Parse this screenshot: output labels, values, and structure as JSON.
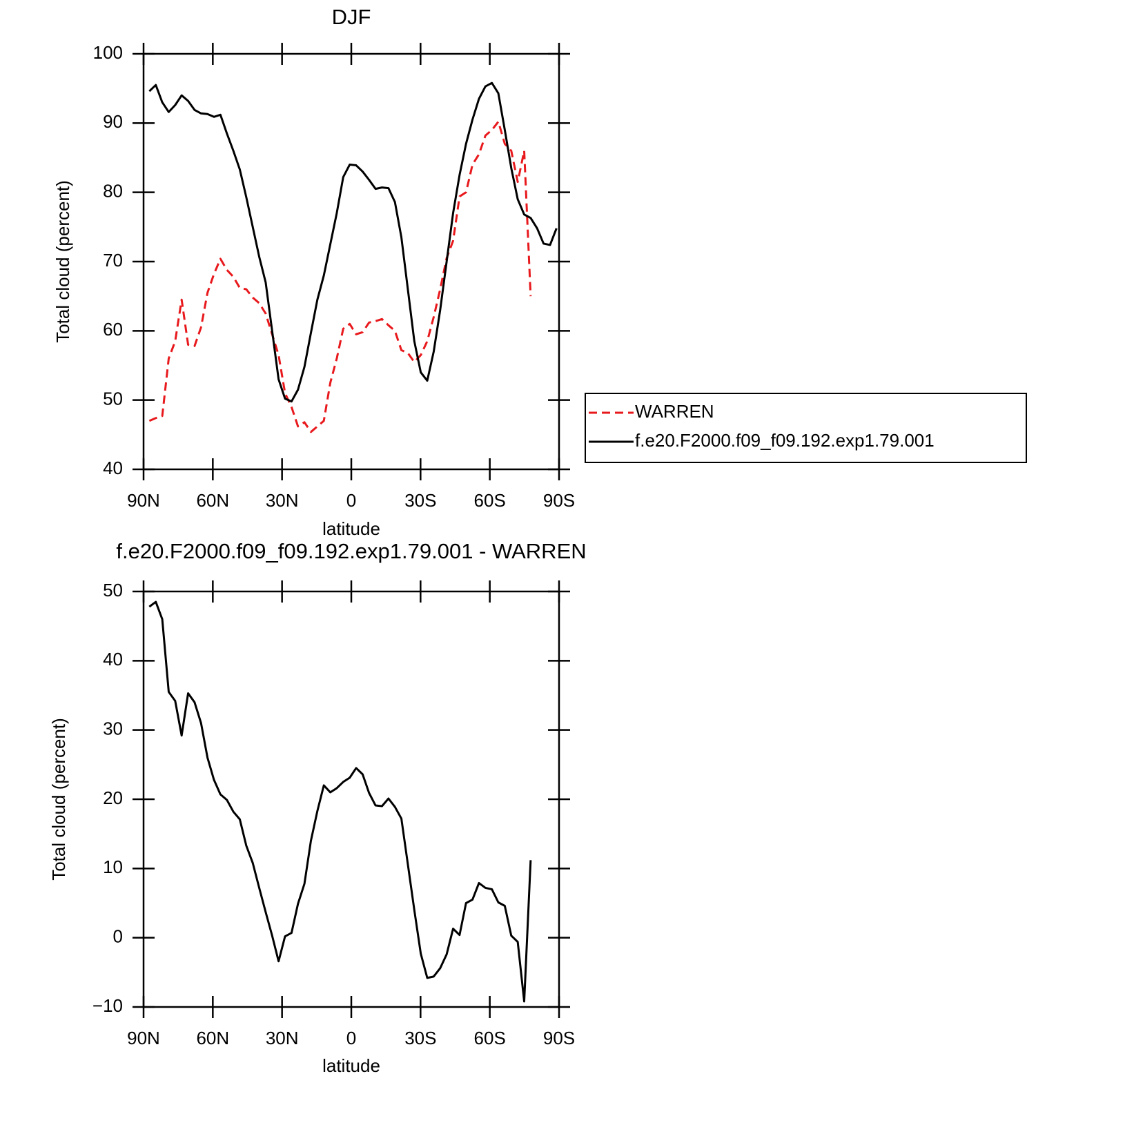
{
  "chart_data": [
    {
      "type": "line",
      "title": "DJF",
      "xlabel": "latitude",
      "ylabel": "Total cloud (percent)",
      "x": [
        87.5,
        84.7,
        81.9,
        79.1,
        76.3,
        73.5,
        70.7,
        67.9,
        65.1,
        62.3,
        59.5,
        56.7,
        53.9,
        51.1,
        48.3,
        45.5,
        42.7,
        39.9,
        37.1,
        34.3,
        31.5,
        28.7,
        25.9,
        23.1,
        20.3,
        17.5,
        14.7,
        11.9,
        9.1,
        6.3,
        3.5,
        0.7,
        -2.1,
        -4.9,
        -7.7,
        -10.5,
        -13.3,
        -16.1,
        -18.9,
        -21.7,
        -24.5,
        -27.3,
        -30.1,
        -32.9,
        -35.7,
        -38.5,
        -41.3,
        -44.1,
        -46.9,
        -49.7,
        -52.5,
        -55.3,
        -58.1,
        -60.9,
        -63.7,
        -66.5,
        -69.3,
        -72.1,
        -74.9,
        -77.7,
        -80.5,
        -83.3,
        -86.1,
        -88.9
      ],
      "series": [
        {
          "name": "WARREN",
          "color": "#e8191d",
          "dashed": true,
          "values": [
            47.0,
            47.4,
            47.7,
            56.0,
            58.5,
            64.5,
            58.0,
            57.8,
            60.5,
            65.5,
            68.2,
            70.4,
            68.8,
            67.8,
            66.2,
            66.0,
            64.8,
            64.0,
            62.5,
            59.5,
            56.5,
            51.0,
            49.0,
            46.2,
            46.8,
            45.4,
            46.2,
            47.0,
            52.5,
            56.0,
            60.3,
            61.0,
            59.5,
            59.8,
            61.2,
            61.4,
            61.7,
            60.8,
            60.0,
            57.2,
            56.8,
            55.5,
            56.5,
            58.5,
            62.0,
            66.0,
            70.5,
            73.0,
            79.4,
            80.0,
            84.0,
            85.5,
            88.2,
            89.0,
            90.2,
            87.0,
            86.0,
            81.5,
            86.0,
            65.0,
            null,
            null,
            null,
            null
          ]
        },
        {
          "name": "f.e20.F2000.f09_f09.192.exp1.79.001",
          "color": "#000000",
          "dashed": false,
          "values": [
            94.6,
            95.5,
            93.0,
            91.6,
            92.6,
            94.0,
            93.2,
            91.9,
            91.4,
            91.3,
            90.9,
            91.2,
            88.5,
            86.0,
            83.3,
            79.3,
            75.0,
            70.7,
            67.0,
            60.0,
            53.0,
            50.2,
            49.8,
            51.5,
            54.8,
            59.7,
            64.5,
            68.0,
            72.5,
            77.0,
            82.2,
            84.0,
            83.9,
            83.0,
            81.8,
            80.5,
            80.7,
            80.6,
            78.6,
            73.5,
            66.0,
            58.5,
            54.0,
            52.8,
            57.0,
            63.0,
            70.0,
            77.0,
            82.5,
            87.0,
            90.5,
            93.5,
            95.3,
            95.8,
            94.3,
            89.0,
            83.5,
            79.0,
            76.8,
            76.3,
            74.8,
            72.6,
            72.4,
            74.8
          ]
        }
      ],
      "xlim": [
        90,
        -90
      ],
      "xticks": [
        {
          "value": 90,
          "label": "90N"
        },
        {
          "value": 60,
          "label": "60N"
        },
        {
          "value": 30,
          "label": "30N"
        },
        0,
        {
          "value": -30,
          "label": "30S"
        },
        {
          "value": -60,
          "label": "60S"
        },
        {
          "value": -90,
          "label": "90S"
        }
      ],
      "ylim": [
        40,
        100
      ],
      "yticks": [
        40,
        50,
        60,
        70,
        80,
        90,
        100
      ],
      "legend": "right"
    },
    {
      "type": "line",
      "title": "f.e20.F2000.f09_f09.192.exp1.79.001 - WARREN",
      "xlabel": "latitude",
      "ylabel": "Total cloud (percent)",
      "x": [
        87.5,
        84.7,
        81.9,
        79.1,
        76.3,
        73.5,
        70.7,
        67.9,
        65.1,
        62.3,
        59.5,
        56.7,
        53.9,
        51.1,
        48.3,
        45.5,
        42.7,
        39.9,
        37.1,
        34.3,
        31.5,
        28.7,
        25.9,
        23.1,
        20.3,
        17.5,
        14.7,
        11.9,
        9.1,
        6.3,
        3.5,
        0.7,
        -2.1,
        -4.9,
        -7.7,
        -10.5,
        -13.3,
        -16.1,
        -18.9,
        -21.7,
        -24.5,
        -27.3,
        -30.1,
        -32.9,
        -35.7,
        -38.5,
        -41.3,
        -44.1,
        -46.9,
        -49.7,
        -52.5,
        -55.3,
        -58.1,
        -60.9,
        -63.7,
        -66.5,
        -69.3,
        -72.1,
        -74.9,
        -77.7
      ],
      "color": "#000000",
      "values": [
        47.8,
        48.5,
        46.0,
        35.5,
        34.2,
        29.2,
        35.3,
        34.0,
        31.0,
        26.0,
        22.8,
        20.7,
        19.9,
        18.2,
        17.1,
        13.3,
        10.8,
        7.2,
        3.7,
        0.3,
        -3.4,
        0.2,
        0.7,
        4.9,
        7.8,
        14.0,
        18.3,
        22.0,
        21.0,
        21.6,
        22.5,
        23.1,
        24.5,
        23.6,
        20.9,
        19.1,
        19.0,
        20.1,
        18.9,
        17.2,
        10.6,
        4.0,
        -2.3,
        -5.8,
        -5.6,
        -4.4,
        -2.4,
        1.3,
        0.4,
        5.0,
        5.5,
        7.9,
        7.2,
        7.0,
        5.1,
        4.6,
        0.3,
        -0.6,
        -9.2,
        11.2
      ],
      "xlim": [
        90,
        -90
      ],
      "xticks": [
        {
          "value": 90,
          "label": "90N"
        },
        {
          "value": 60,
          "label": "60N"
        },
        {
          "value": 30,
          "label": "30N"
        },
        0,
        {
          "value": -30,
          "label": "30S"
        },
        {
          "value": -60,
          "label": "60S"
        },
        {
          "value": -90,
          "label": "90S"
        }
      ],
      "ylim": [
        -10,
        50
      ],
      "yticks": [
        {
          "value": -10,
          "label": "−10"
        },
        0,
        10,
        20,
        30,
        40,
        50
      ]
    }
  ]
}
